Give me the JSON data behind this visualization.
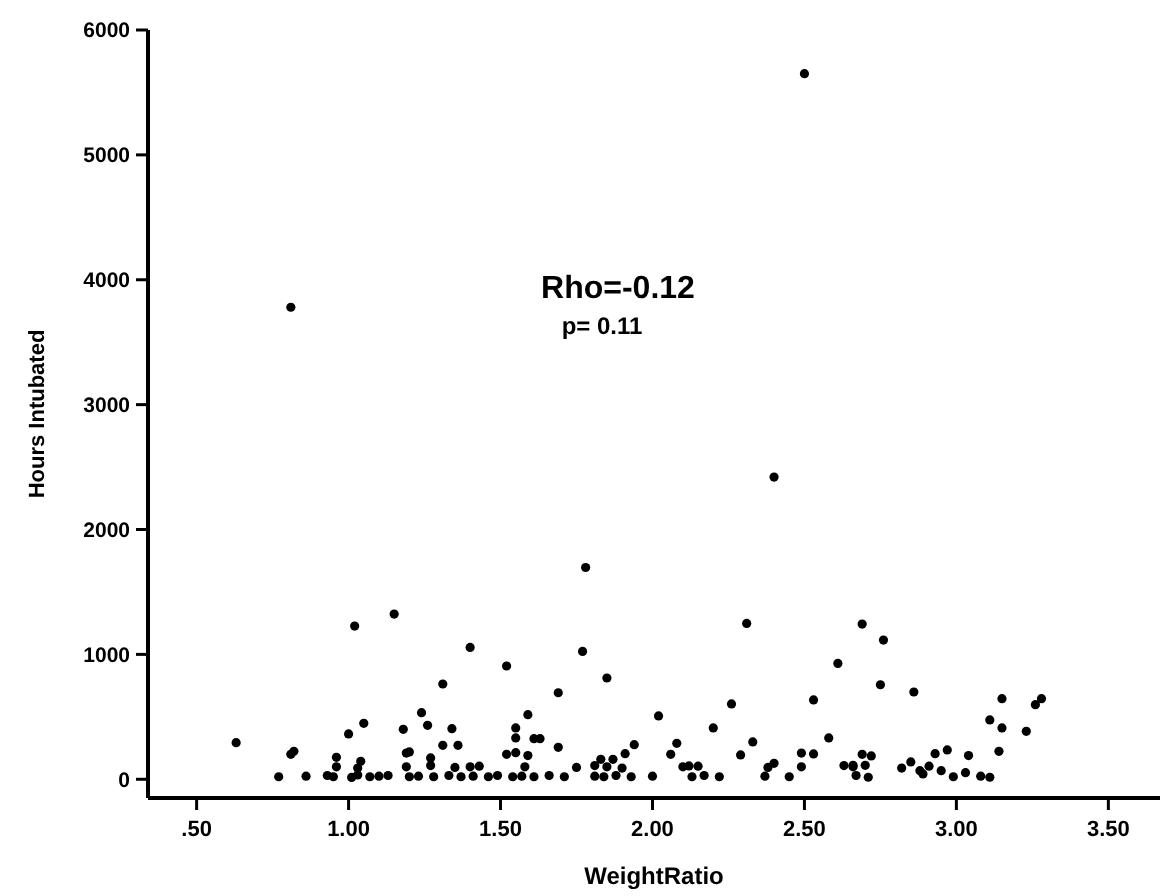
{
  "chart_data": {
    "type": "scatter",
    "xlabel": "WeightRatio",
    "ylabel": "Hours Intubated",
    "annotations": [
      "Rho=-0.12",
      "p= 0.11"
    ],
    "xlim": [
      0.34,
      3.67
    ],
    "ylim": [
      -150,
      6000
    ],
    "xticks": [
      {
        "value": 0.5,
        "label": ".50"
      },
      {
        "value": 1,
        "label": "1.00"
      },
      {
        "value": 1.5,
        "label": "1.50"
      },
      {
        "value": 2,
        "label": "2.00"
      },
      {
        "value": 2.5,
        "label": "2.50"
      },
      {
        "value": 3,
        "label": "3.00"
      },
      {
        "value": 3.5,
        "label": "3.50"
      }
    ],
    "yticks": [
      0,
      1000,
      2000,
      3000,
      4000,
      5000,
      6000
    ],
    "grid": false,
    "marker": "circle",
    "series": [
      {
        "color": "#000000",
        "x": [
          0.81,
          2.5,
          2.4,
          0.63,
          1.02,
          1.15,
          1.4,
          1.31,
          0.82,
          1.05,
          1.0,
          1.18,
          1.24,
          1.26,
          1.2,
          1.34,
          1.31,
          1.36,
          1.27,
          0.96,
          1.04,
          1.78,
          1.52,
          1.77,
          1.85,
          1.69,
          2.31,
          2.61,
          2.26,
          2.53,
          2.02,
          2.2,
          2.08,
          2.33,
          2.58,
          2.53,
          1.94,
          1.59,
          1.61,
          1.63,
          1.55,
          1.55,
          1.55,
          1.69,
          1.83,
          1.87,
          2.4,
          2.12,
          2.69,
          2.76,
          2.75,
          2.86,
          3.15,
          3.28,
          3.26,
          3.11,
          3.15,
          3.23,
          3.14,
          2.97,
          2.72,
          2.85,
          2.88,
          2.89,
          2.66,
          2.7,
          2.71,
          2.95,
          3.03,
          3.11,
          0.77,
          0.86,
          0.93,
          0.95,
          1.01,
          1.03,
          1.07,
          1.1,
          1.13,
          1.2,
          1.23,
          1.28,
          1.33,
          1.37,
          1.41,
          1.46,
          1.49,
          1.54,
          1.57,
          1.61,
          1.66,
          1.71,
          1.81,
          1.84,
          1.88,
          1.93,
          2.0,
          2.13,
          2.17,
          2.22,
          2.37,
          2.45,
          2.67,
          2.99,
          3.08,
          0.96,
          1.03,
          1.19,
          1.27,
          1.35,
          1.4,
          1.43,
          1.58,
          1.75,
          1.81,
          1.85,
          1.9,
          2.1,
          2.15,
          2.38,
          2.49,
          2.63,
          2.66,
          2.82,
          2.91,
          0.81,
          1.19,
          1.52,
          1.59,
          1.91,
          2.06,
          2.29,
          2.49,
          2.69,
          2.93,
          3.04
        ],
        "values": [
          3780,
          5650,
          2420,
          293,
          1227,
          1323,
          1056,
          763,
          224,
          448,
          363,
          400,
          533,
          432,
          219,
          405,
          272,
          272,
          171,
          176,
          144,
          1696,
          907,
          1024,
          811,
          693,
          1248,
          928,
          603,
          635,
          507,
          411,
          288,
          299,
          331,
          203,
          277,
          517,
          325,
          325,
          411,
          331,
          213,
          256,
          160,
          160,
          128,
          107,
          1243,
          1115,
          757,
          699,
          645,
          645,
          597,
          475,
          411,
          384,
          224,
          235,
          187,
          139,
          69,
          43,
          112,
          112,
          16,
          69,
          53,
          16,
          20,
          25,
          30,
          20,
          15,
          35,
          20,
          25,
          30,
          20,
          25,
          20,
          30,
          20,
          25,
          20,
          30,
          20,
          25,
          20,
          30,
          20,
          25,
          20,
          30,
          20,
          25,
          20,
          30,
          20,
          25,
          20,
          30,
          20,
          25,
          100,
          90,
          100,
          110,
          95,
          100,
          105,
          100,
          95,
          110,
          100,
          90,
          100,
          105,
          95,
          100,
          110,
          100,
          90,
          105,
          200,
          210,
          200,
          190,
          205,
          200,
          195,
          210,
          200,
          205,
          190
        ]
      }
    ]
  }
}
